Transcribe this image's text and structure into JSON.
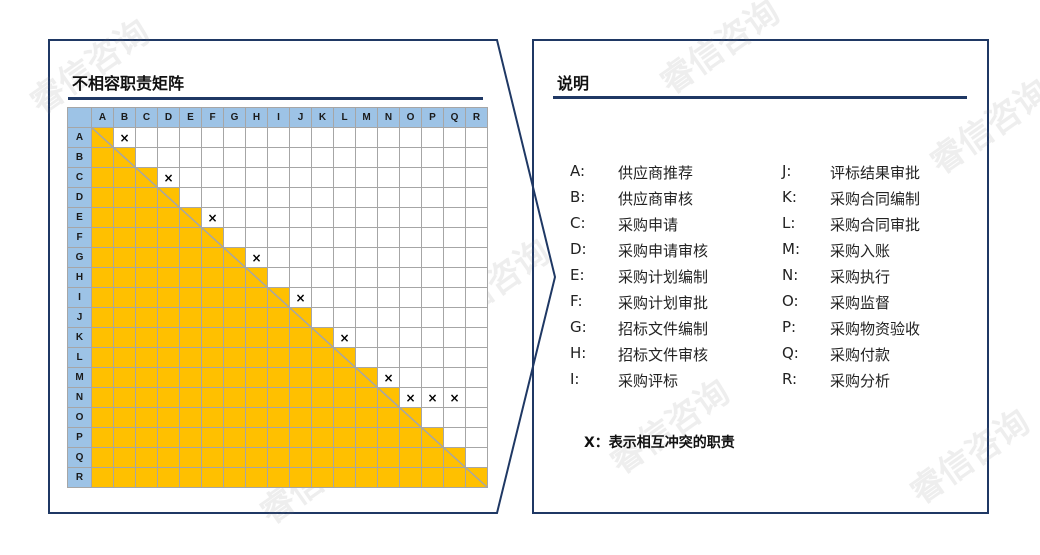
{
  "left_panel": {
    "title": "不相容职责矩阵"
  },
  "right_panel": {
    "title": "说明"
  },
  "matrix": {
    "labels": [
      "A",
      "B",
      "C",
      "D",
      "E",
      "F",
      "G",
      "H",
      "I",
      "J",
      "K",
      "L",
      "M",
      "N",
      "O",
      "P",
      "Q",
      "R"
    ],
    "conflict_mark": "×",
    "conflicts": [
      [
        "A",
        "B"
      ],
      [
        "C",
        "D"
      ],
      [
        "E",
        "F"
      ],
      [
        "G",
        "H"
      ],
      [
        "I",
        "J"
      ],
      [
        "K",
        "L"
      ],
      [
        "M",
        "N"
      ],
      [
        "N",
        "O"
      ],
      [
        "N",
        "P"
      ],
      [
        "N",
        "Q"
      ]
    ],
    "fill_color": "#ffc000",
    "header_color": "#9dc3e6"
  },
  "legend": {
    "col1": [
      {
        "key": "A:",
        "label": "供应商推荐"
      },
      {
        "key": "B:",
        "label": "供应商审核"
      },
      {
        "key": "C:",
        "label": "采购申请"
      },
      {
        "key": "D:",
        "label": "采购申请审核"
      },
      {
        "key": "E:",
        "label": "采购计划编制"
      },
      {
        "key": "F:",
        "label": "采购计划审批"
      },
      {
        "key": "G:",
        "label": "招标文件编制"
      },
      {
        "key": "H:",
        "label": "招标文件审核"
      },
      {
        "key": "I:",
        "label": "采购评标"
      }
    ],
    "col2": [
      {
        "key": "J:",
        "label": "评标结果审批"
      },
      {
        "key": "K:",
        "label": "采购合同编制"
      },
      {
        "key": "L:",
        "label": "采购合同审批"
      },
      {
        "key": "M:",
        "label": "采购入账"
      },
      {
        "key": "N:",
        "label": "采购执行"
      },
      {
        "key": "O:",
        "label": "采购监督"
      },
      {
        "key": "P:",
        "label": "采购物资验收"
      },
      {
        "key": "Q:",
        "label": "采购付款"
      },
      {
        "key": "R:",
        "label": "采购分析"
      }
    ],
    "note": "X：表示相互冲突的职责"
  },
  "watermark": "睿信咨询",
  "colors": {
    "border": "#1f3864"
  }
}
